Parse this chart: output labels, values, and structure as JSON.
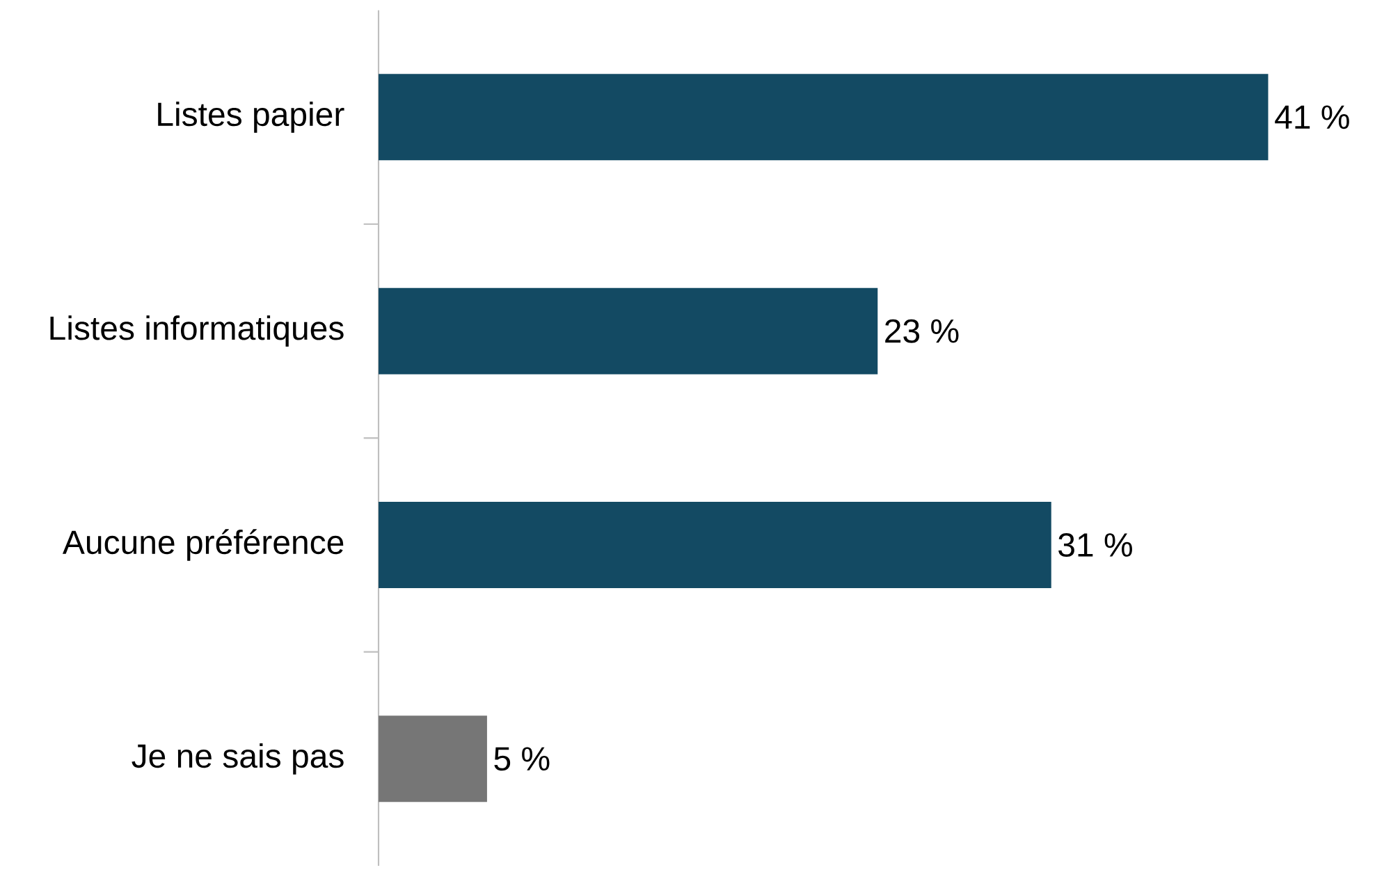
{
  "chart_data": {
    "type": "bar",
    "orientation": "horizontal",
    "categories": [
      "Listes papier",
      "Listes informatiques",
      "Aucune préférence",
      "Je ne sais pas"
    ],
    "values": [
      41,
      23,
      31,
      5
    ],
    "colors": [
      "#134a63",
      "#134a63",
      "#134a63",
      "#767676"
    ],
    "value_labels": [
      "41 %",
      "23 %",
      "31 %",
      "5 %"
    ]
  }
}
